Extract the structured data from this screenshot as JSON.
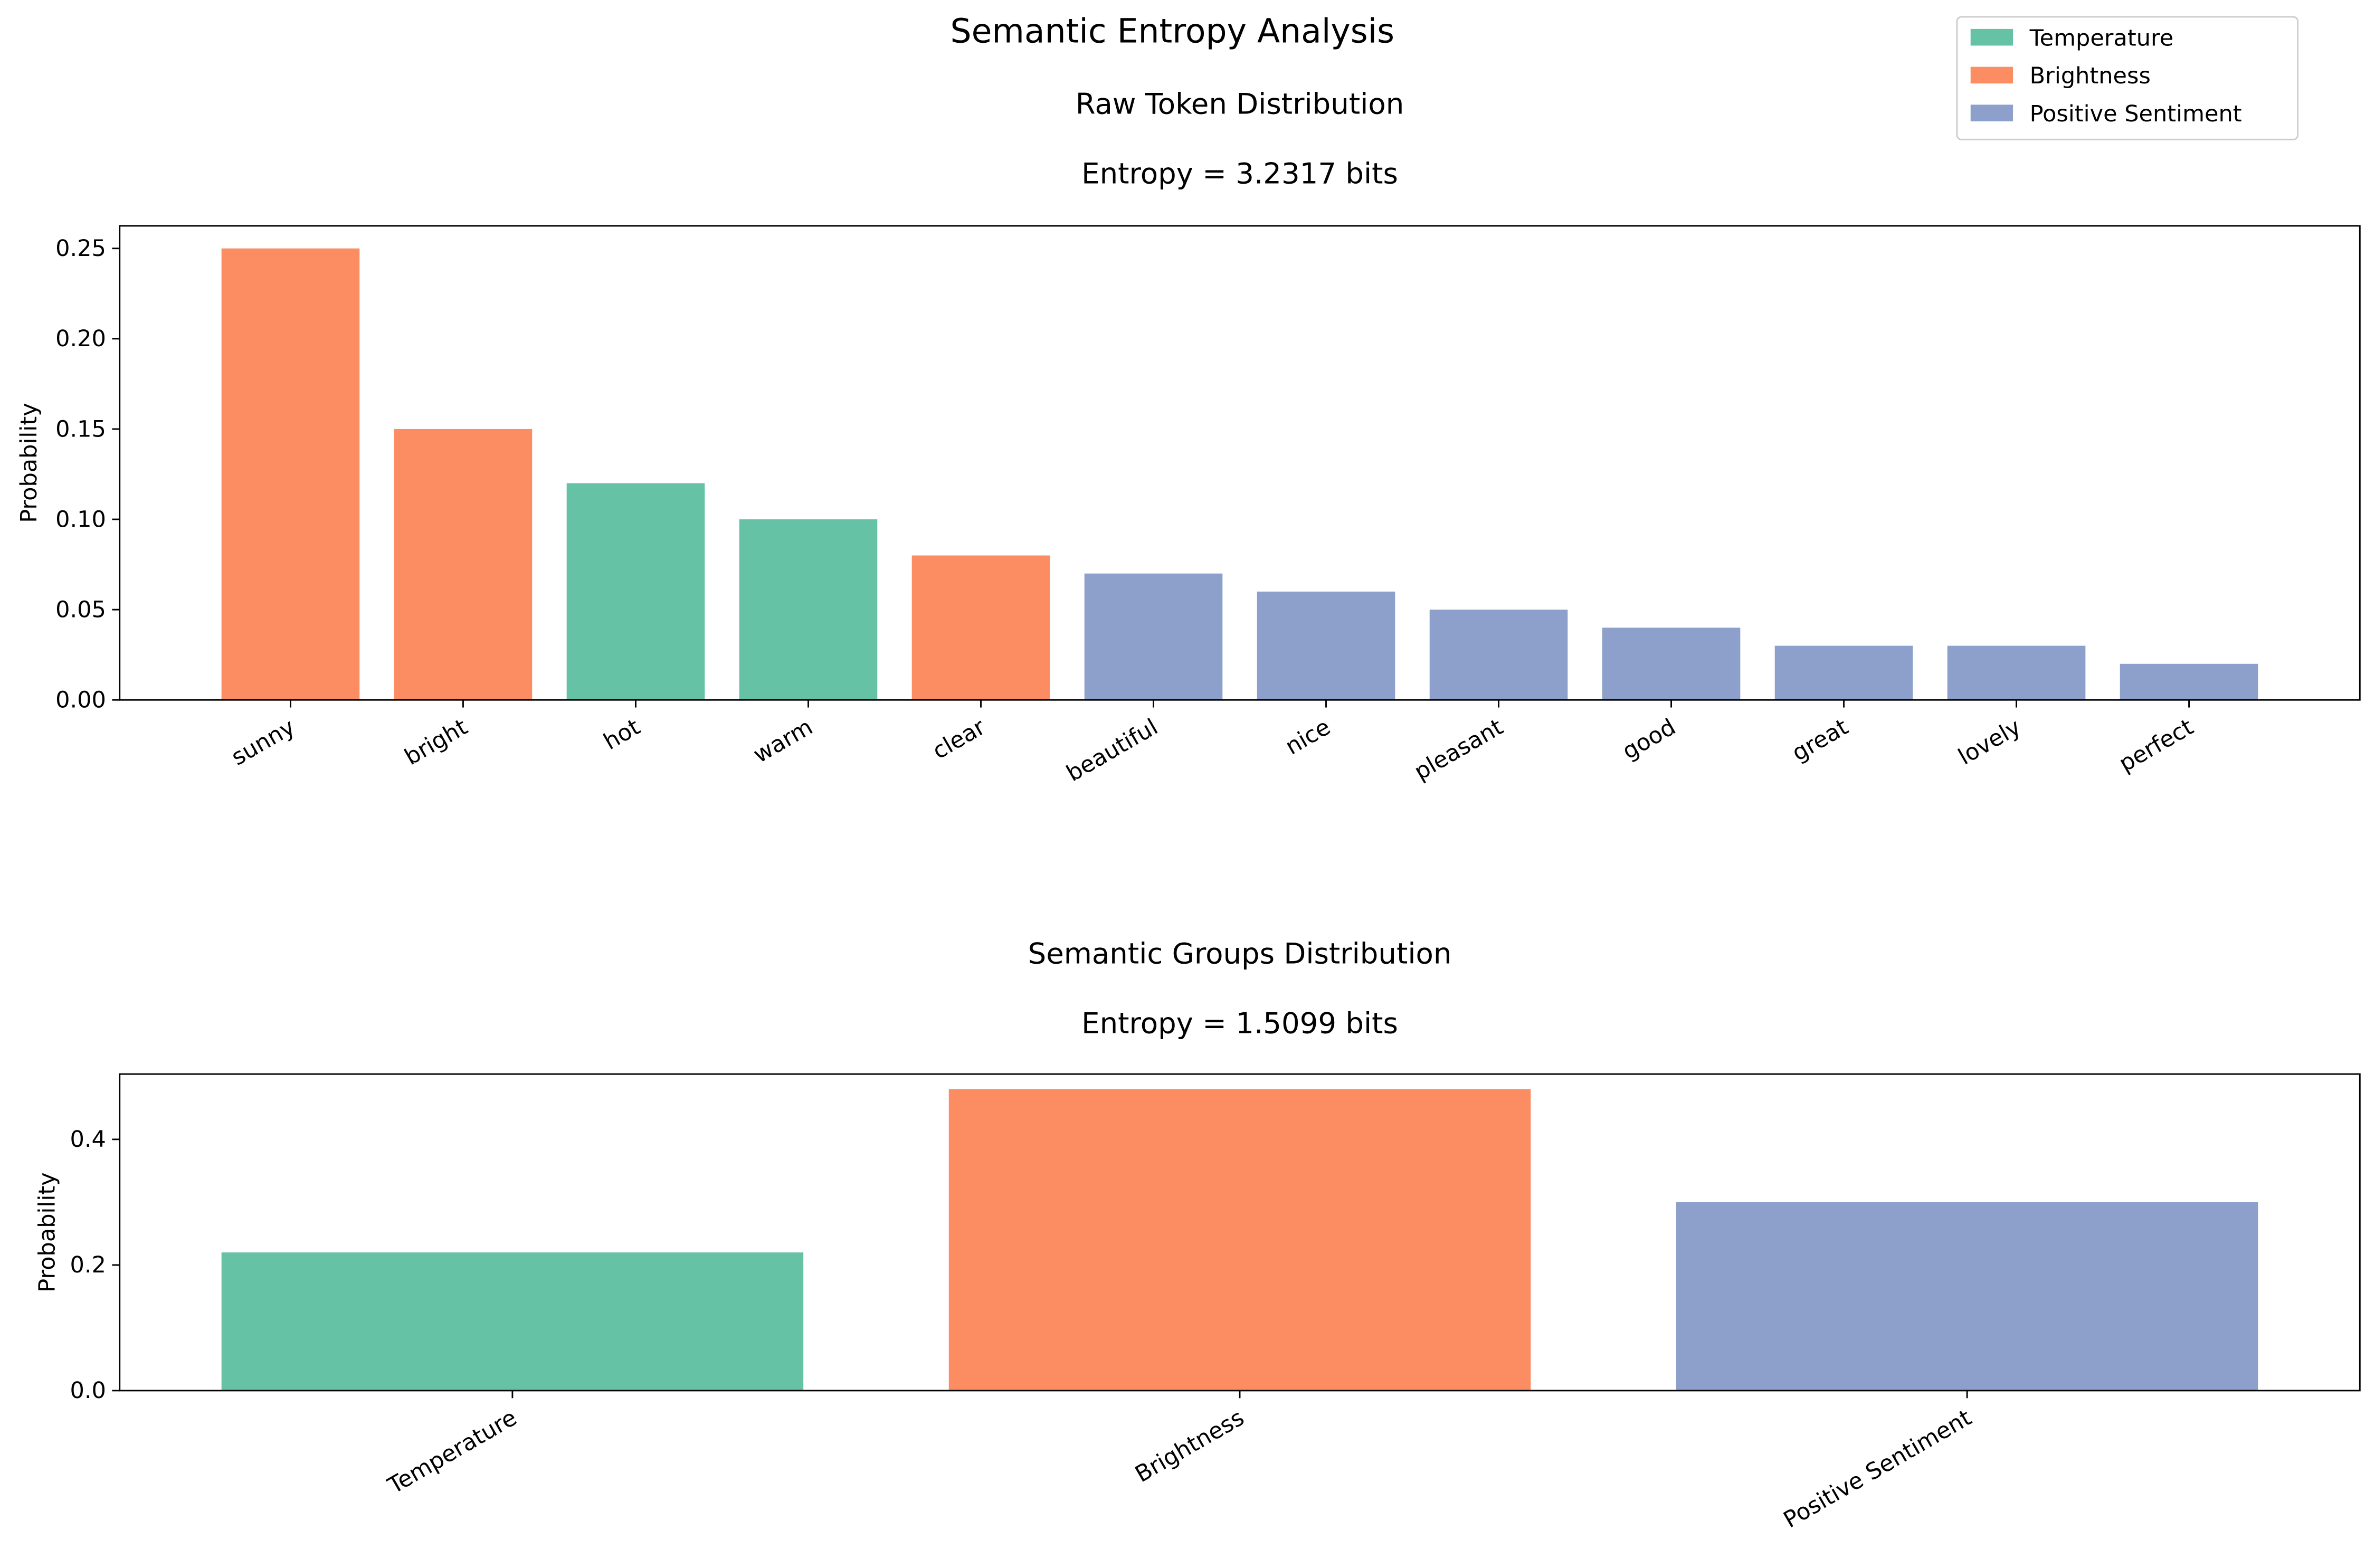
{
  "figure_title": "Semantic Entropy Analysis",
  "colors": {
    "Temperature": "#66c2a5",
    "Brightness": "#fc8d62",
    "Positive Sentiment": "#8da0cb"
  },
  "legend": {
    "placement": "upper-right",
    "entries": [
      "Temperature",
      "Brightness",
      "Positive Sentiment"
    ]
  },
  "chart_data": [
    {
      "type": "bar",
      "title": "Raw Token Distribution",
      "subtitle": "Entropy = 3.2317 bits",
      "xlabel": "",
      "ylabel": "Probability",
      "ylim": [
        0,
        0.2625
      ],
      "yticks": [
        "0.00",
        "0.05",
        "0.10",
        "0.15",
        "0.20",
        "0.25"
      ],
      "categories": [
        "sunny",
        "bright",
        "hot",
        "warm",
        "clear",
        "beautiful",
        "nice",
        "pleasant",
        "good",
        "great",
        "lovely",
        "perfect"
      ],
      "values": [
        0.25,
        0.15,
        0.12,
        0.1,
        0.08,
        0.07,
        0.06,
        0.05,
        0.04,
        0.03,
        0.03,
        0.02
      ],
      "groups": [
        "Brightness",
        "Brightness",
        "Temperature",
        "Temperature",
        "Brightness",
        "Positive Sentiment",
        "Positive Sentiment",
        "Positive Sentiment",
        "Positive Sentiment",
        "Positive Sentiment",
        "Positive Sentiment",
        "Positive Sentiment"
      ],
      "grid": false
    },
    {
      "type": "bar",
      "title": "Semantic Groups Distribution",
      "subtitle": "Entropy = 1.5099 bits",
      "xlabel": "",
      "ylabel": "Probability",
      "ylim": [
        0,
        0.504
      ],
      "yticks": [
        "0.0",
        "0.2",
        "0.4"
      ],
      "categories": [
        "Temperature",
        "Brightness",
        "Positive Sentiment"
      ],
      "values": [
        0.22,
        0.48,
        0.3
      ],
      "groups": [
        "Temperature",
        "Brightness",
        "Positive Sentiment"
      ],
      "grid": false
    }
  ]
}
